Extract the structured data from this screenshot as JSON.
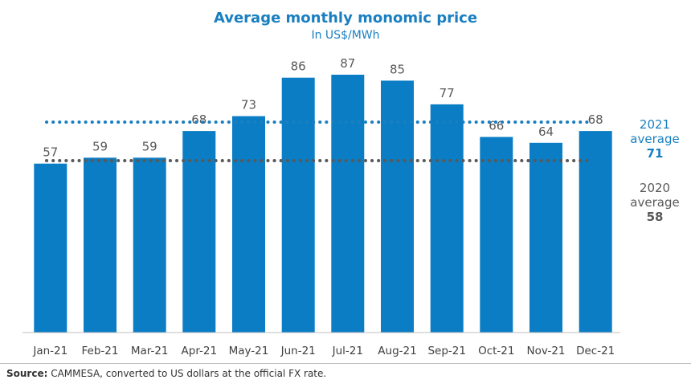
{
  "chart_data": {
    "type": "bar",
    "title": "Average monthly monomic price",
    "subtitle": "In US$/MWh",
    "categories": [
      "Jan-21",
      "Feb-21",
      "Mar-21",
      "Apr-21",
      "May-21",
      "Jun-21",
      "Jul-21",
      "Aug-21",
      "Sep-21",
      "Oct-21",
      "Nov-21",
      "Dec-21"
    ],
    "values": [
      57,
      59,
      59,
      68,
      73,
      86,
      87,
      85,
      77,
      66,
      64,
      68
    ],
    "ylim": [
      0,
      100
    ],
    "xlabel": "",
    "ylabel": "",
    "bar_color": "#0a7dc4",
    "reference_lines": [
      {
        "year": "2021",
        "label": "average",
        "value": 71,
        "color": "#1a7fc1"
      },
      {
        "year": "2020",
        "label": "average",
        "value": 58,
        "color": "#595959"
      }
    ]
  },
  "source": {
    "label": "Source:",
    "text": " CAMMESA, converted to US dollars at the official FX rate."
  }
}
